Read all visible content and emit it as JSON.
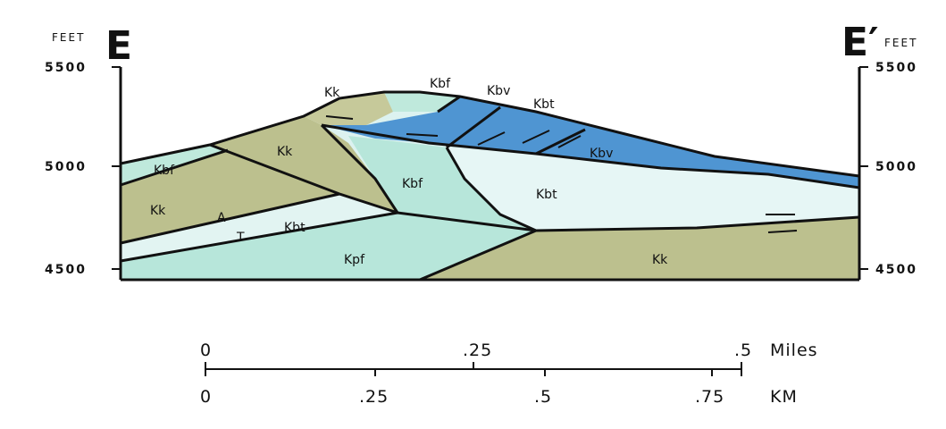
{
  "left_axis": {
    "unit": "FEET",
    "section_label": "E",
    "ticks": [
      "5500",
      "5000",
      "4500"
    ]
  },
  "right_axis": {
    "unit": "FEET",
    "section_label": "E′",
    "ticks": [
      "5500",
      "5000",
      "4500"
    ]
  },
  "units": [
    "Kk",
    "Kbf",
    "Kbv",
    "Kbt",
    "Kk",
    "Kbf",
    "Kbv",
    "Kbf",
    "Kbt",
    "Kk",
    "A",
    "Kbt",
    "T",
    "Kpf",
    "Kk"
  ],
  "scale": {
    "miles": {
      "ticks": [
        "0",
        ".25",
        ".5"
      ],
      "unit": "Miles"
    },
    "km": {
      "ticks": [
        "0",
        ".25",
        ".5",
        ".75"
      ],
      "unit": "KM"
    }
  }
}
